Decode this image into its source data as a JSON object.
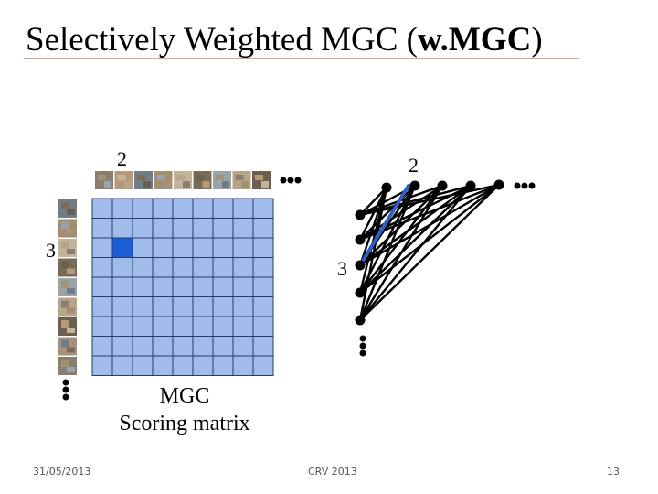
{
  "slide": {
    "title_pre": "Selectively Weighted MGC (",
    "title_bold": "w.MGC",
    "title_post": ")",
    "label_cols": "2",
    "label_rows": "3",
    "label_right_cols": "2",
    "label_right_rows": "3",
    "caption_line1": "MGC",
    "caption_line2": "Scoring matrix",
    "footer_date": "31/05/2013",
    "footer_venue": "CRV 2013",
    "footer_page": "13"
  },
  "colors": {
    "cell": "#9fbde8",
    "cell_border": "#2a3a6a",
    "highlight_cell": "#1a5fd6",
    "highlight_edge": "#2f5ec4",
    "title_rule": "#e8a08c"
  },
  "matrix": {
    "rows": 9,
    "cols": 9,
    "highlight_row": 2,
    "highlight_col": 1
  },
  "graph": {
    "top_nodes": 5,
    "left_nodes": 5,
    "highlight_edge": [
      1,
      2
    ]
  }
}
